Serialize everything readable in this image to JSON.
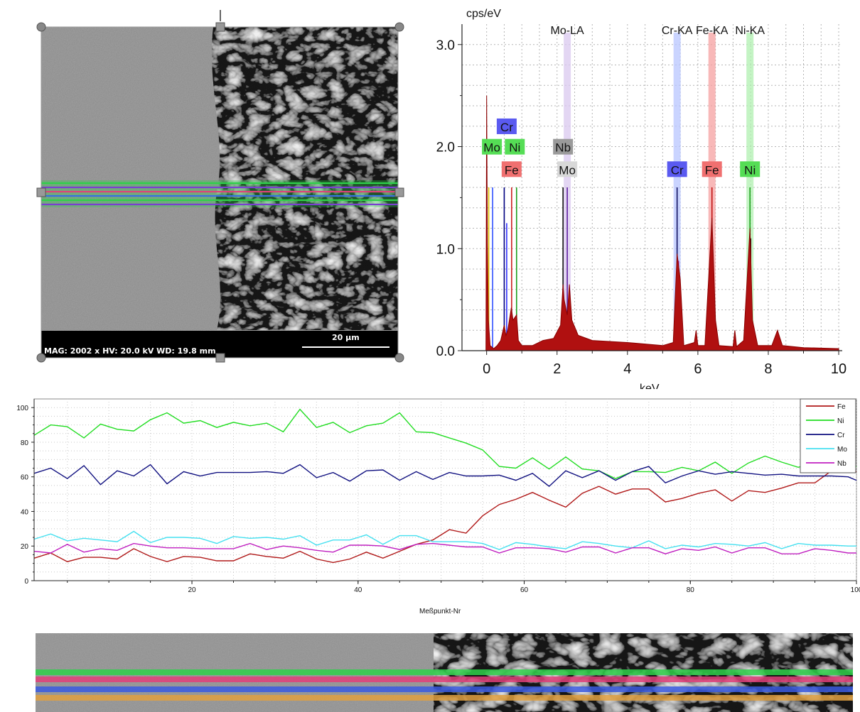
{
  "sem_image": {
    "info_text": "MAG: 2002 x    HV: 20.0 kV    WD: 19.8 mm",
    "scalebar_label": "20 µm",
    "top_marker": "I",
    "line_colors": [
      "#2fd04a",
      "#7a3fd0",
      "#e0407a",
      "#3a6fe0"
    ]
  },
  "spectrum": {
    "ylabel": "cps/eV",
    "xlabel": "keV",
    "header_labels": [
      "Mo-LA",
      "Cr-KA",
      "Fe-KA",
      "Ni-KA"
    ],
    "tag_colors": {
      "Cr": "#5a5af0",
      "Mo": "#d8d8d8",
      "Ni": "#55dd55",
      "Fe": "#f07070",
      "Nb": "#9a9a9a"
    },
    "band_colors": {
      "Mo": "#d9c8ef",
      "Cr": "#b8c6ff",
      "Fe": "#f6a0a0",
      "Ni": "#b0f0b0"
    }
  },
  "line_profile": {
    "xlabel": "Meßpunkt-Nr",
    "legend_colors": {
      "Fe": "#b01818",
      "Ni": "#22dd22",
      "Cr": "#101080",
      "Mo": "#44e0f0",
      "Nb": "#c020c0"
    }
  },
  "sem_strip": {
    "line_colors": [
      "#2fd04a",
      "#e0407a",
      "#3a5ae0",
      "#e0a040"
    ]
  },
  "chart_data": [
    {
      "type": "line",
      "title": "",
      "xlabel": "keV",
      "ylabel": "cps/eV",
      "xlim": [
        -0.7,
        10.1
      ],
      "ylim": [
        0,
        3.2
      ],
      "xticks": [
        "0",
        "2",
        "4",
        "6",
        "8",
        "10"
      ],
      "yticks": [
        "0.0",
        "1.0",
        "2.0",
        "3.0"
      ],
      "grid": true,
      "peak_labels": [
        {
          "text": "Mo-LA",
          "x": 2.29
        },
        {
          "text": "Cr-KA",
          "x": 5.41
        },
        {
          "text": "Fe-KA",
          "x": 6.4
        },
        {
          "text": "Ni-KA",
          "x": 7.48
        }
      ],
      "element_tags": [
        {
          "text": "Cr",
          "x": 0.57,
          "y": 2.15,
          "el": "Cr"
        },
        {
          "text": "Mo",
          "x": 0.15,
          "y": 1.95,
          "el": "Ni"
        },
        {
          "text": "Ni",
          "x": 0.8,
          "y": 1.95,
          "el": "Ni"
        },
        {
          "text": "Fe",
          "x": 0.71,
          "y": 1.73,
          "el": "Fe"
        },
        {
          "text": "Nb",
          "x": 2.17,
          "y": 1.95,
          "el": "Nb"
        },
        {
          "text": "Mo",
          "x": 2.29,
          "y": 1.73,
          "el": "Mo"
        },
        {
          "text": "Cr",
          "x": 5.41,
          "y": 1.73,
          "el": "Cr"
        },
        {
          "text": "Fe",
          "x": 6.4,
          "y": 1.73,
          "el": "Fe"
        },
        {
          "text": "Ni",
          "x": 7.48,
          "y": 1.73,
          "el": "Ni"
        }
      ],
      "series": [
        {
          "x": [
            -0.02,
            0.0,
            0.02,
            0.05,
            0.1,
            0.2,
            0.3,
            0.4,
            0.5,
            0.55,
            0.6,
            0.7,
            0.75,
            0.85,
            0.9,
            1.0,
            1.3,
            1.6,
            1.9,
            2.1,
            2.17,
            2.2,
            2.29,
            2.35,
            2.42,
            2.6,
            3.0,
            4.0,
            5.0,
            5.3,
            5.41,
            5.5,
            5.6,
            5.9,
            5.95,
            6.0,
            6.2,
            6.4,
            6.5,
            6.6,
            7.0,
            7.05,
            7.1,
            7.3,
            7.48,
            7.55,
            7.7,
            8.1,
            8.26,
            8.4,
            9.0,
            10.0
          ],
          "y": [
            0.0,
            2.5,
            1.05,
            0.3,
            0.05,
            0.02,
            0.05,
            0.1,
            0.25,
            0.15,
            0.2,
            0.42,
            0.3,
            0.35,
            0.1,
            0.05,
            0.05,
            0.1,
            0.12,
            0.25,
            0.65,
            0.5,
            0.35,
            0.65,
            0.3,
            0.15,
            0.1,
            0.08,
            0.05,
            0.08,
            0.95,
            0.7,
            0.05,
            0.08,
            0.2,
            0.05,
            0.05,
            1.3,
            0.3,
            0.05,
            0.04,
            0.2,
            0.04,
            0.1,
            1.2,
            0.3,
            0.05,
            0.05,
            0.2,
            0.05,
            0.03,
            0.02
          ]
        }
      ],
      "colored_peaks": [
        {
          "x": 0.06,
          "y": 1.6,
          "color": "#e0c000"
        },
        {
          "x": 0.17,
          "y": 1.6,
          "color": "#3050ff"
        },
        {
          "x": 0.5,
          "y": 1.6,
          "color": "#000080"
        },
        {
          "x": 0.57,
          "y": 1.25,
          "color": "#3030ff"
        },
        {
          "x": 0.71,
          "y": 1.6,
          "color": "#cc2020"
        },
        {
          "x": 0.85,
          "y": 1.6,
          "color": "#20a020"
        },
        {
          "x": 2.17,
          "y": 1.6,
          "color": "#101010"
        },
        {
          "x": 2.29,
          "y": 1.6,
          "color": "#6020a0"
        },
        {
          "x": 5.41,
          "y": 1.6,
          "color": "#101060"
        },
        {
          "x": 5.45,
          "y": 0.88,
          "color": "#a020c0"
        },
        {
          "x": 6.4,
          "y": 1.6,
          "color": "#c01010"
        },
        {
          "x": 7.48,
          "y": 1.6,
          "color": "#20a020"
        },
        {
          "x": 7.5,
          "y": 1.1,
          "color": "#101010"
        }
      ]
    },
    {
      "type": "line",
      "title": "",
      "xlabel": "Meßpunkt-Nr",
      "ylabel": "",
      "xlim": [
        1,
        100
      ],
      "ylim": [
        0,
        105
      ],
      "xticks": [
        "20",
        "40",
        "60",
        "80",
        "100"
      ],
      "yticks": [
        "0",
        "20",
        "40",
        "60",
        "80",
        "100"
      ],
      "grid": true,
      "legend_position": "top-right",
      "series": [
        {
          "name": "Fe",
          "x": [
            1,
            3,
            5,
            7,
            9,
            11,
            13,
            15,
            17,
            19,
            21,
            23,
            25,
            27,
            29,
            31,
            33,
            35,
            37,
            39,
            41,
            43,
            45,
            47,
            49,
            51,
            53,
            55,
            57,
            59,
            61,
            63,
            65,
            67,
            69,
            71,
            73,
            75,
            77,
            79,
            81,
            83,
            85,
            87,
            89,
            91,
            93,
            95,
            97,
            99,
            100
          ],
          "y": [
            14,
            16,
            10,
            15,
            14,
            12,
            17,
            15,
            11,
            13,
            15,
            12,
            11,
            14,
            15,
            13,
            16,
            14,
            11,
            12,
            15,
            14,
            17,
            20,
            25,
            30,
            27,
            36,
            45,
            47,
            50,
            48,
            43,
            50,
            53,
            51,
            53,
            52,
            47,
            48,
            50,
            51,
            47,
            52,
            50,
            55,
            57,
            56,
            62,
            64,
            63
          ]
        },
        {
          "name": "Ni",
          "x": [
            1,
            3,
            5,
            7,
            9,
            11,
            13,
            15,
            17,
            19,
            21,
            23,
            25,
            27,
            29,
            31,
            33,
            35,
            37,
            39,
            41,
            43,
            45,
            47,
            49,
            51,
            53,
            55,
            57,
            59,
            61,
            63,
            65,
            67,
            69,
            71,
            73,
            75,
            77,
            79,
            81,
            83,
            85,
            87,
            89,
            91,
            93,
            95,
            97,
            99,
            100
          ],
          "y": [
            85,
            90,
            88,
            84,
            91,
            87,
            85,
            94,
            97,
            90,
            94,
            89,
            91,
            88,
            92,
            86,
            98,
            90,
            92,
            85,
            88,
            92,
            97,
            85,
            87,
            83,
            79,
            74,
            67,
            65,
            70,
            66,
            72,
            64,
            62,
            60,
            63,
            62,
            64,
            66,
            63,
            67,
            63,
            68,
            71,
            70,
            66,
            68,
            70,
            65,
            66
          ]
        },
        {
          "name": "Cr",
          "x": [
            1,
            3,
            5,
            7,
            9,
            11,
            13,
            15,
            17,
            19,
            21,
            23,
            25,
            27,
            29,
            31,
            33,
            35,
            37,
            39,
            41,
            43,
            45,
            47,
            49,
            51,
            53,
            55,
            57,
            59,
            61,
            63,
            65,
            67,
            69,
            71,
            73,
            75,
            77,
            79,
            81,
            83,
            85,
            87,
            89,
            91,
            93,
            95,
            97,
            99,
            100
          ],
          "y": [
            63,
            65,
            58,
            68,
            56,
            63,
            59,
            68,
            56,
            62,
            62,
            63,
            62,
            61,
            64,
            62,
            66,
            61,
            63,
            57,
            62,
            65,
            58,
            62,
            60,
            63,
            60,
            59,
            62,
            58,
            61,
            56,
            64,
            59,
            62,
            59,
            63,
            65,
            58,
            61,
            63,
            60,
            64,
            62,
            60,
            63,
            61,
            60,
            59,
            61,
            58
          ]
        },
        {
          "name": "Mo",
          "x": [
            1,
            3,
            5,
            7,
            9,
            11,
            13,
            15,
            17,
            19,
            21,
            23,
            25,
            27,
            29,
            31,
            33,
            35,
            37,
            39,
            41,
            43,
            45,
            47,
            49,
            51,
            53,
            55,
            57,
            59,
            61,
            63,
            65,
            67,
            69,
            71,
            73,
            75,
            77,
            79,
            81,
            83,
            85,
            87,
            89,
            91,
            93,
            95,
            97,
            99,
            100
          ],
          "y": [
            25,
            27,
            22,
            26,
            24,
            22,
            27,
            23,
            25,
            24,
            26,
            22,
            25,
            23,
            26,
            24,
            25,
            22,
            24,
            23,
            25,
            22,
            26,
            25,
            24,
            23,
            22,
            20,
            19,
            22,
            20,
            21,
            19,
            22,
            20,
            21,
            19,
            22,
            20,
            21,
            19,
            20,
            22,
            20,
            21,
            20,
            22,
            20,
            19,
            21,
            20
          ]
        },
        {
          "name": "Nb",
          "x": [
            1,
            3,
            5,
            7,
            9,
            11,
            13,
            15,
            17,
            19,
            21,
            23,
            25,
            27,
            29,
            31,
            33,
            35,
            37,
            39,
            41,
            43,
            45,
            47,
            49,
            51,
            53,
            55,
            57,
            59,
            61,
            63,
            65,
            67,
            69,
            71,
            73,
            75,
            77,
            79,
            81,
            83,
            85,
            87,
            89,
            91,
            93,
            95,
            97,
            99,
            100
          ],
          "y": [
            18,
            16,
            20,
            18,
            19,
            17,
            20,
            21,
            19,
            18,
            20,
            19,
            18,
            20,
            19,
            20,
            18,
            19,
            17,
            20,
            19,
            21,
            18,
            20,
            23,
            21,
            19,
            18,
            17,
            19,
            18,
            20,
            17,
            19,
            18,
            17,
            19,
            18,
            17,
            19,
            17,
            18,
            17,
            19,
            18,
            17,
            16,
            18,
            16,
            17,
            16
          ]
        }
      ]
    }
  ]
}
